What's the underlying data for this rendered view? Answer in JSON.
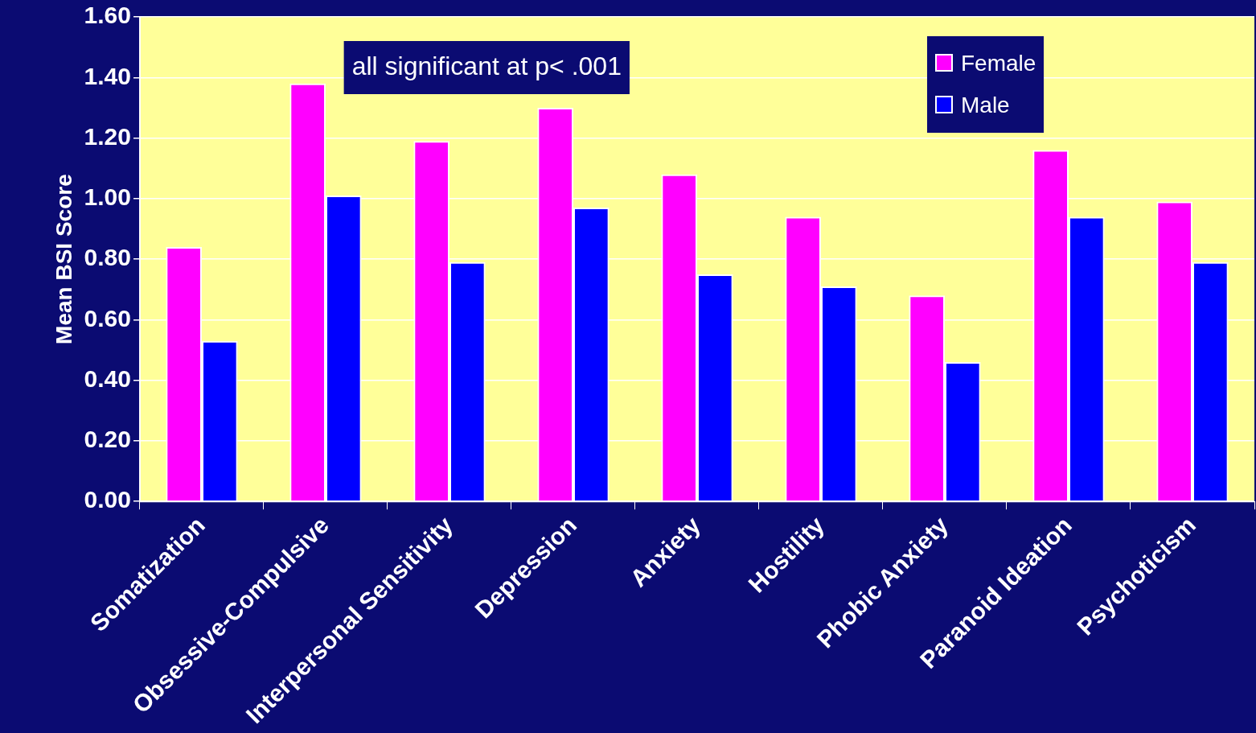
{
  "chart_data": {
    "type": "bar",
    "ylabel": "Mean BSI Score",
    "categories": [
      "Somatization",
      "Obsessive-Compulsive",
      "Interpersonal Sensitivity",
      "Depression",
      "Anxiety",
      "Hostility",
      "Phobic Anxiety",
      "Paranoid Ideation",
      "Psychoticism"
    ],
    "series": [
      {
        "name": "Female",
        "color": "#ff00ff",
        "values": [
          0.84,
          1.38,
          1.19,
          1.3,
          1.08,
          0.94,
          0.68,
          1.16,
          0.99
        ]
      },
      {
        "name": "Male",
        "color": "#0000ff",
        "values": [
          0.53,
          1.01,
          0.79,
          0.97,
          0.75,
          0.71,
          0.46,
          0.94,
          0.79
        ]
      }
    ],
    "ylim": [
      0,
      1.6
    ],
    "yticks": [
      {
        "value": 0,
        "label": "0.00"
      },
      {
        "value": 0.2,
        "label": "0.20"
      },
      {
        "value": 0.4,
        "label": "0.40"
      },
      {
        "value": 0.6,
        "label": "0.60"
      },
      {
        "value": 0.8,
        "label": "0.80"
      },
      {
        "value": 1.0,
        "label": "1.00"
      },
      {
        "value": 1.2,
        "label": "1.20"
      },
      {
        "value": 1.4,
        "label": "1.40"
      },
      {
        "value": 1.6,
        "label": "1.60"
      }
    ],
    "grid": "y",
    "legend": "top right",
    "annotations": [
      "all significant at p< .001"
    ]
  }
}
